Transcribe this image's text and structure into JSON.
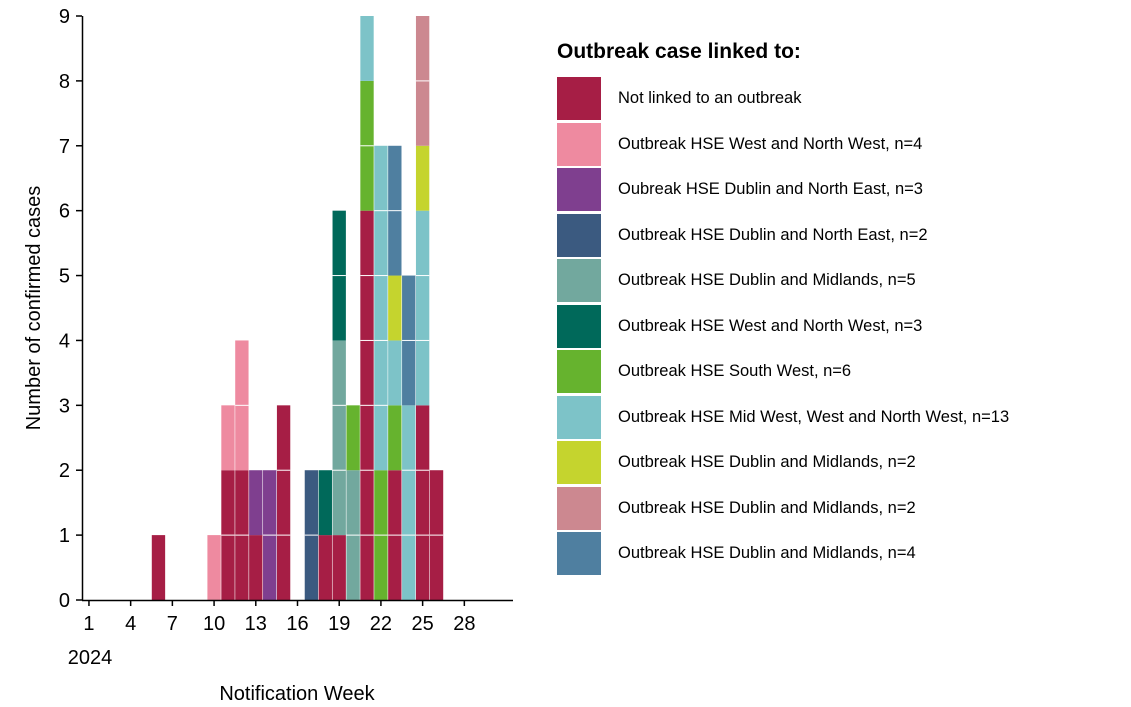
{
  "chart_data": {
    "type": "bar",
    "stacked": true,
    "xlabel": "Notification Week",
    "ylabel": "Number of confirmed cases",
    "ylim": [
      0,
      9
    ],
    "yticks": [
      0,
      1,
      2,
      3,
      4,
      5,
      6,
      7,
      8,
      9
    ],
    "xlim": [
      0.5,
      31.5
    ],
    "xticks": [
      "1",
      "4",
      "7",
      "10",
      "13",
      "16",
      "19",
      "22",
      "25",
      "28"
    ],
    "year_label": "2024",
    "legend_title": "Outbreak case linked to:",
    "legend_position": "right",
    "series": [
      {
        "name": "Not linked to an outbreak",
        "color": "#A61E45",
        "points": [
          {
            "week": 6,
            "value": 1
          },
          {
            "week": 11,
            "value": 2
          },
          {
            "week": 12,
            "value": 2
          },
          {
            "week": 13,
            "value": 1
          },
          {
            "week": 15,
            "value": 3
          },
          {
            "week": 18,
            "value": 1
          },
          {
            "week": 19,
            "value": 1
          },
          {
            "week": 21,
            "value": 6
          },
          {
            "week": 23,
            "value": 2
          },
          {
            "week": 25,
            "value": 3
          },
          {
            "week": 26,
            "value": 2
          }
        ]
      },
      {
        "name": "Outbreak HSE West and North West, n=4",
        "color": "#EE8AA0",
        "points": [
          {
            "week": 10,
            "value": 1
          },
          {
            "week": 11,
            "value": 1
          },
          {
            "week": 12,
            "value": 2
          }
        ]
      },
      {
        "name": "Oubreak HSE Dublin and North East, n=3",
        "color": "#7F3F8F",
        "points": [
          {
            "week": 13,
            "value": 1
          },
          {
            "week": 14,
            "value": 2
          }
        ]
      },
      {
        "name": "Outbreak HSE Dublin and North East, n=2",
        "color": "#3B5A80",
        "points": [
          {
            "week": 17,
            "value": 2
          }
        ]
      },
      {
        "name": "Outbreak HSE Dublin and Midlands, n=5",
        "color": "#72A89E",
        "points": [
          {
            "week": 19,
            "value": 3
          },
          {
            "week": 20,
            "value": 2
          }
        ]
      },
      {
        "name": "Outbreak HSE West and North West, n=3",
        "color": "#00695A",
        "points": [
          {
            "week": 18,
            "value": 1
          },
          {
            "week": 19,
            "value": 2
          }
        ]
      },
      {
        "name": "Outbreak HSE South West, n=6",
        "color": "#66B32E",
        "points": [
          {
            "week": 20,
            "value": 1
          },
          {
            "week": 21,
            "value": 2
          },
          {
            "week": 22,
            "value": 2
          },
          {
            "week": 23,
            "value": 1
          }
        ]
      },
      {
        "name": "Outbreak HSE Mid West, West and North West, n=13",
        "color": "#7DC3C8",
        "points": [
          {
            "week": 21,
            "value": 1
          },
          {
            "week": 22,
            "value": 5
          },
          {
            "week": 23,
            "value": 1
          },
          {
            "week": 24,
            "value": 3
          },
          {
            "week": 25,
            "value": 3
          }
        ]
      },
      {
        "name": "Outbreak HSE Dublin and Midlands, n=2",
        "color": "#C5D42E",
        "points": [
          {
            "week": 23,
            "value": 1
          },
          {
            "week": 25,
            "value": 1
          }
        ]
      },
      {
        "name": "Outbreak HSE Dublin and Midlands, n=2",
        "color": "#CC8890",
        "points": [
          {
            "week": 25,
            "value": 2
          }
        ]
      },
      {
        "name": "Outbreak HSE Dublin and Midlands, n=4",
        "color": "#4F7FA0",
        "points": [
          {
            "week": 23,
            "value": 2
          },
          {
            "week": 24,
            "value": 2
          }
        ]
      }
    ]
  }
}
